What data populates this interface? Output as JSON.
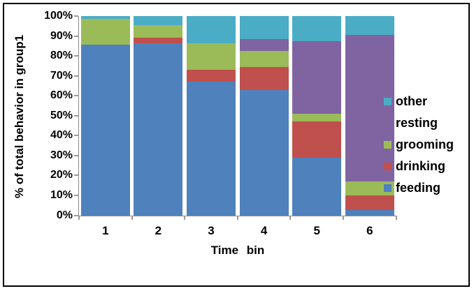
{
  "chart_data": {
    "type": "bar",
    "variant": "stacked-100-percent",
    "title": "",
    "xlabel": "Time bin",
    "ylabel": "% of total behavior in group1",
    "categories": [
      "1",
      "2",
      "3",
      "4",
      "5",
      "6"
    ],
    "series": [
      {
        "name": "feeding",
        "color": "#4F81BD",
        "values": [
          85.5,
          86.5,
          67.0,
          63.0,
          29.0,
          2.5
        ]
      },
      {
        "name": "drinking",
        "color": "#C0504D",
        "values": [
          0.0,
          2.5,
          6.0,
          11.5,
          18.0,
          7.5
        ]
      },
      {
        "name": "grooming",
        "color": "#9BBB59",
        "values": [
          13.0,
          6.5,
          13.5,
          8.0,
          4.0,
          7.0
        ]
      },
      {
        "name": "resting",
        "color": "#8064A2",
        "values": [
          0.0,
          0.0,
          0.0,
          6.0,
          36.5,
          73.5
        ]
      },
      {
        "name": "other",
        "color": "#4BACC6",
        "values": [
          1.5,
          4.5,
          13.5,
          11.5,
          12.5,
          9.5
        ]
      }
    ],
    "ylim": [
      0,
      100
    ],
    "ytick_step": 10,
    "ytick_labels": [
      "0%",
      "10%",
      "20%",
      "30%",
      "40%",
      "50%",
      "60%",
      "70%",
      "80%",
      "90%",
      "100%"
    ],
    "grid": false,
    "legend": {
      "position": "right",
      "entries_top_to_bottom": [
        "other",
        "resting",
        "grooming",
        "drinking",
        "feeding"
      ]
    },
    "axis_color": "#8C8C8C",
    "text_color": "#000000",
    "frame_color": "#000000"
  }
}
